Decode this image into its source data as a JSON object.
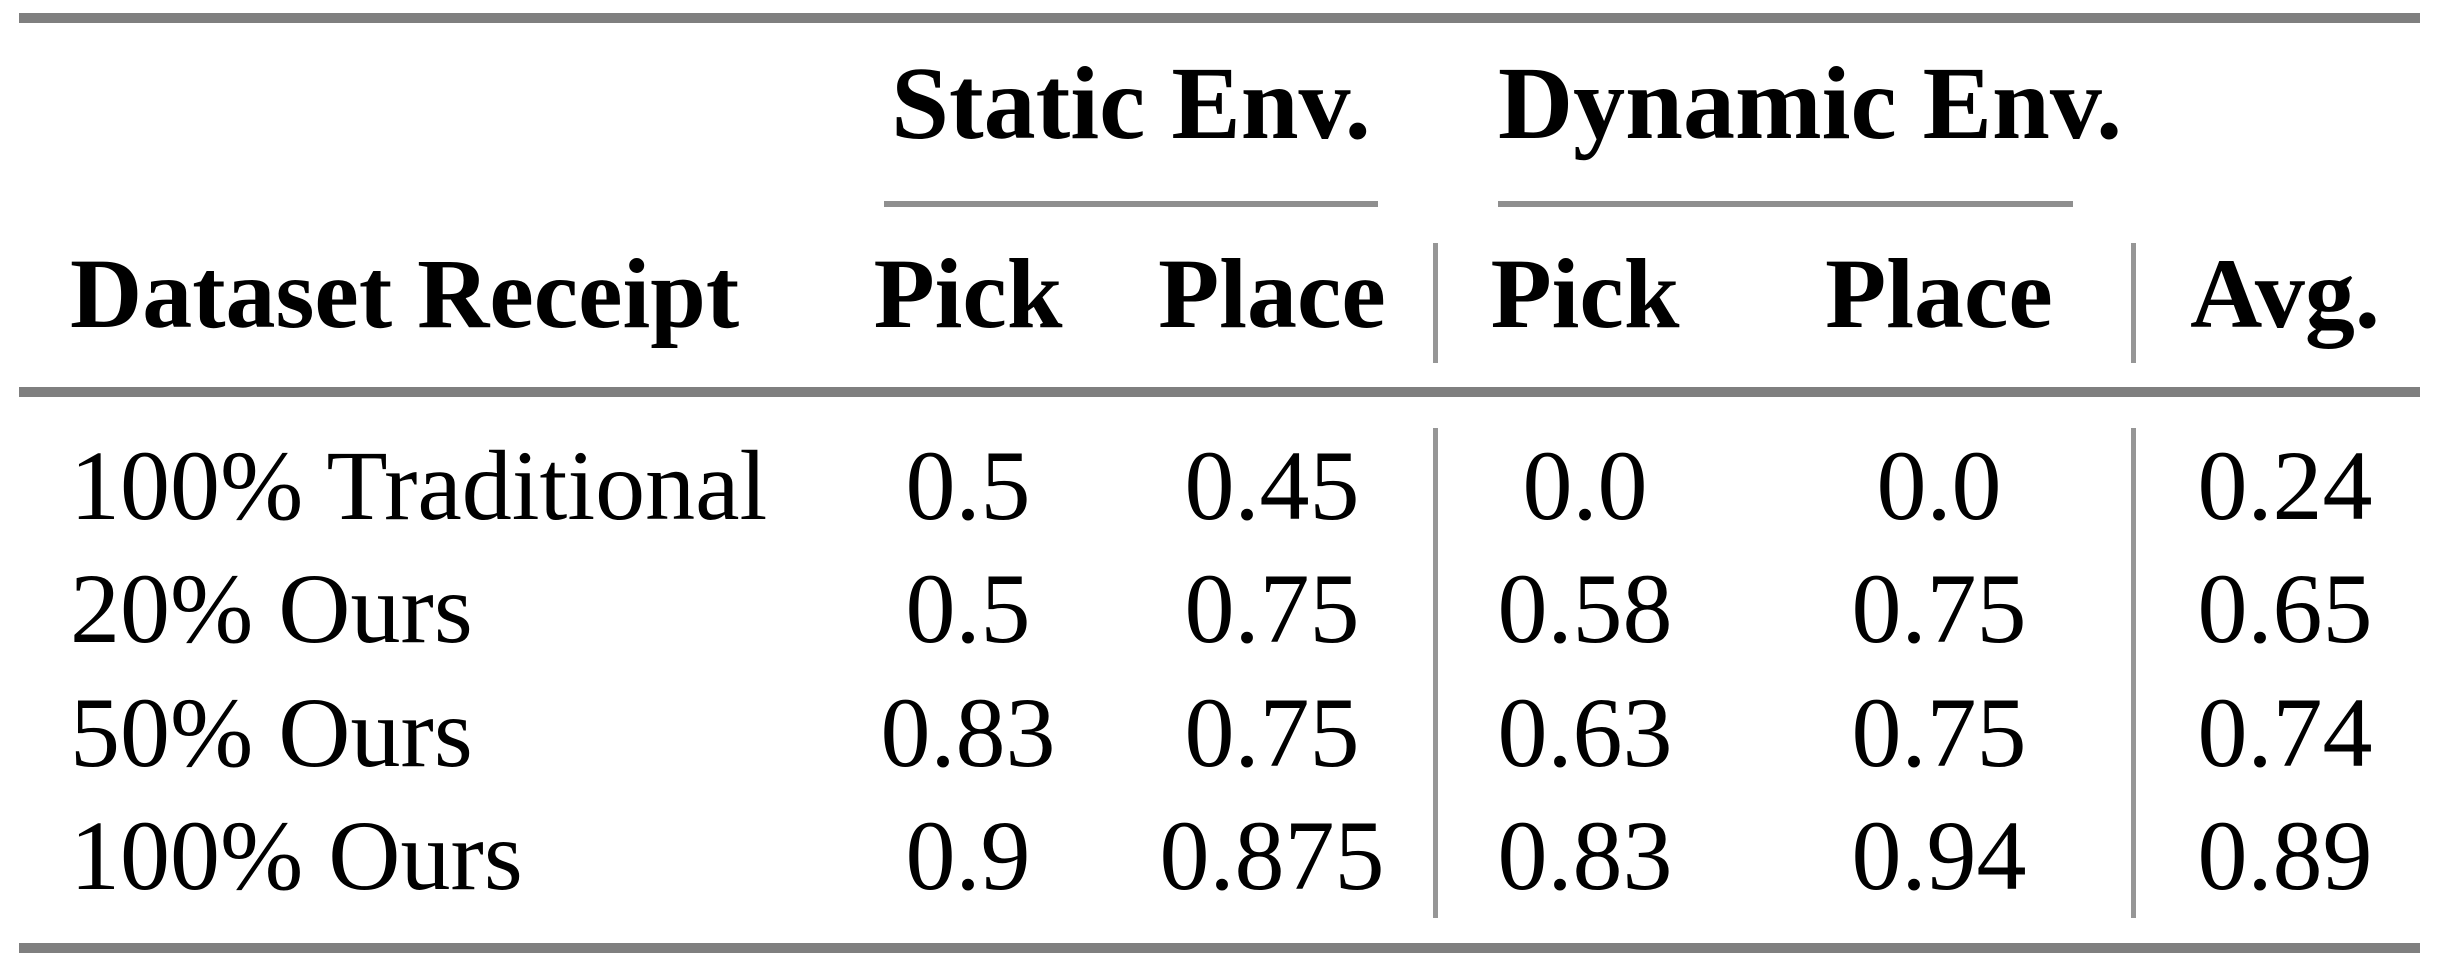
{
  "table": {
    "column_groups": [
      {
        "label": "Static Env."
      },
      {
        "label": "Dynamic Env."
      }
    ],
    "headers": {
      "row_header": "Dataset Receipt",
      "static_pick": "Pick",
      "static_place": "Place",
      "dynamic_pick": "Pick",
      "dynamic_place": "Place",
      "avg": "Avg."
    },
    "rows": [
      {
        "label": "100% Traditional",
        "static_pick": "0.5",
        "static_place": "0.45",
        "dynamic_pick": "0.0",
        "dynamic_place": "0.0",
        "avg": "0.24"
      },
      {
        "label": "20% Ours",
        "static_pick": "0.5",
        "static_place": "0.75",
        "dynamic_pick": "0.58",
        "dynamic_place": "0.75",
        "avg": "0.65"
      },
      {
        "label": "50% Ours",
        "static_pick": "0.83",
        "static_place": "0.75",
        "dynamic_pick": "0.63",
        "dynamic_place": "0.75",
        "avg": "0.74"
      },
      {
        "label": "100% Ours",
        "static_pick": "0.9",
        "static_place": "0.875",
        "dynamic_pick": "0.83",
        "dynamic_place": "0.94",
        "avg": "0.89"
      }
    ],
    "colors": {
      "thick_rule": "#7f7f7f",
      "thin_rule": "#969696",
      "text": "#000000",
      "background": "#ffffff"
    }
  },
  "chart_data": {
    "type": "table",
    "columns": [
      "Dataset Receipt",
      "Static Env. Pick",
      "Static Env. Place",
      "Dynamic Env. Pick",
      "Dynamic Env. Place",
      "Avg."
    ],
    "rows": [
      [
        "100% Traditional",
        0.5,
        0.45,
        0.0,
        0.0,
        0.24
      ],
      [
        "20% Ours",
        0.5,
        0.75,
        0.58,
        0.75,
        0.65
      ],
      [
        "50% Ours",
        0.83,
        0.75,
        0.63,
        0.75,
        0.74
      ],
      [
        "100% Ours",
        0.9,
        0.875,
        0.83,
        0.94,
        0.89
      ]
    ]
  }
}
